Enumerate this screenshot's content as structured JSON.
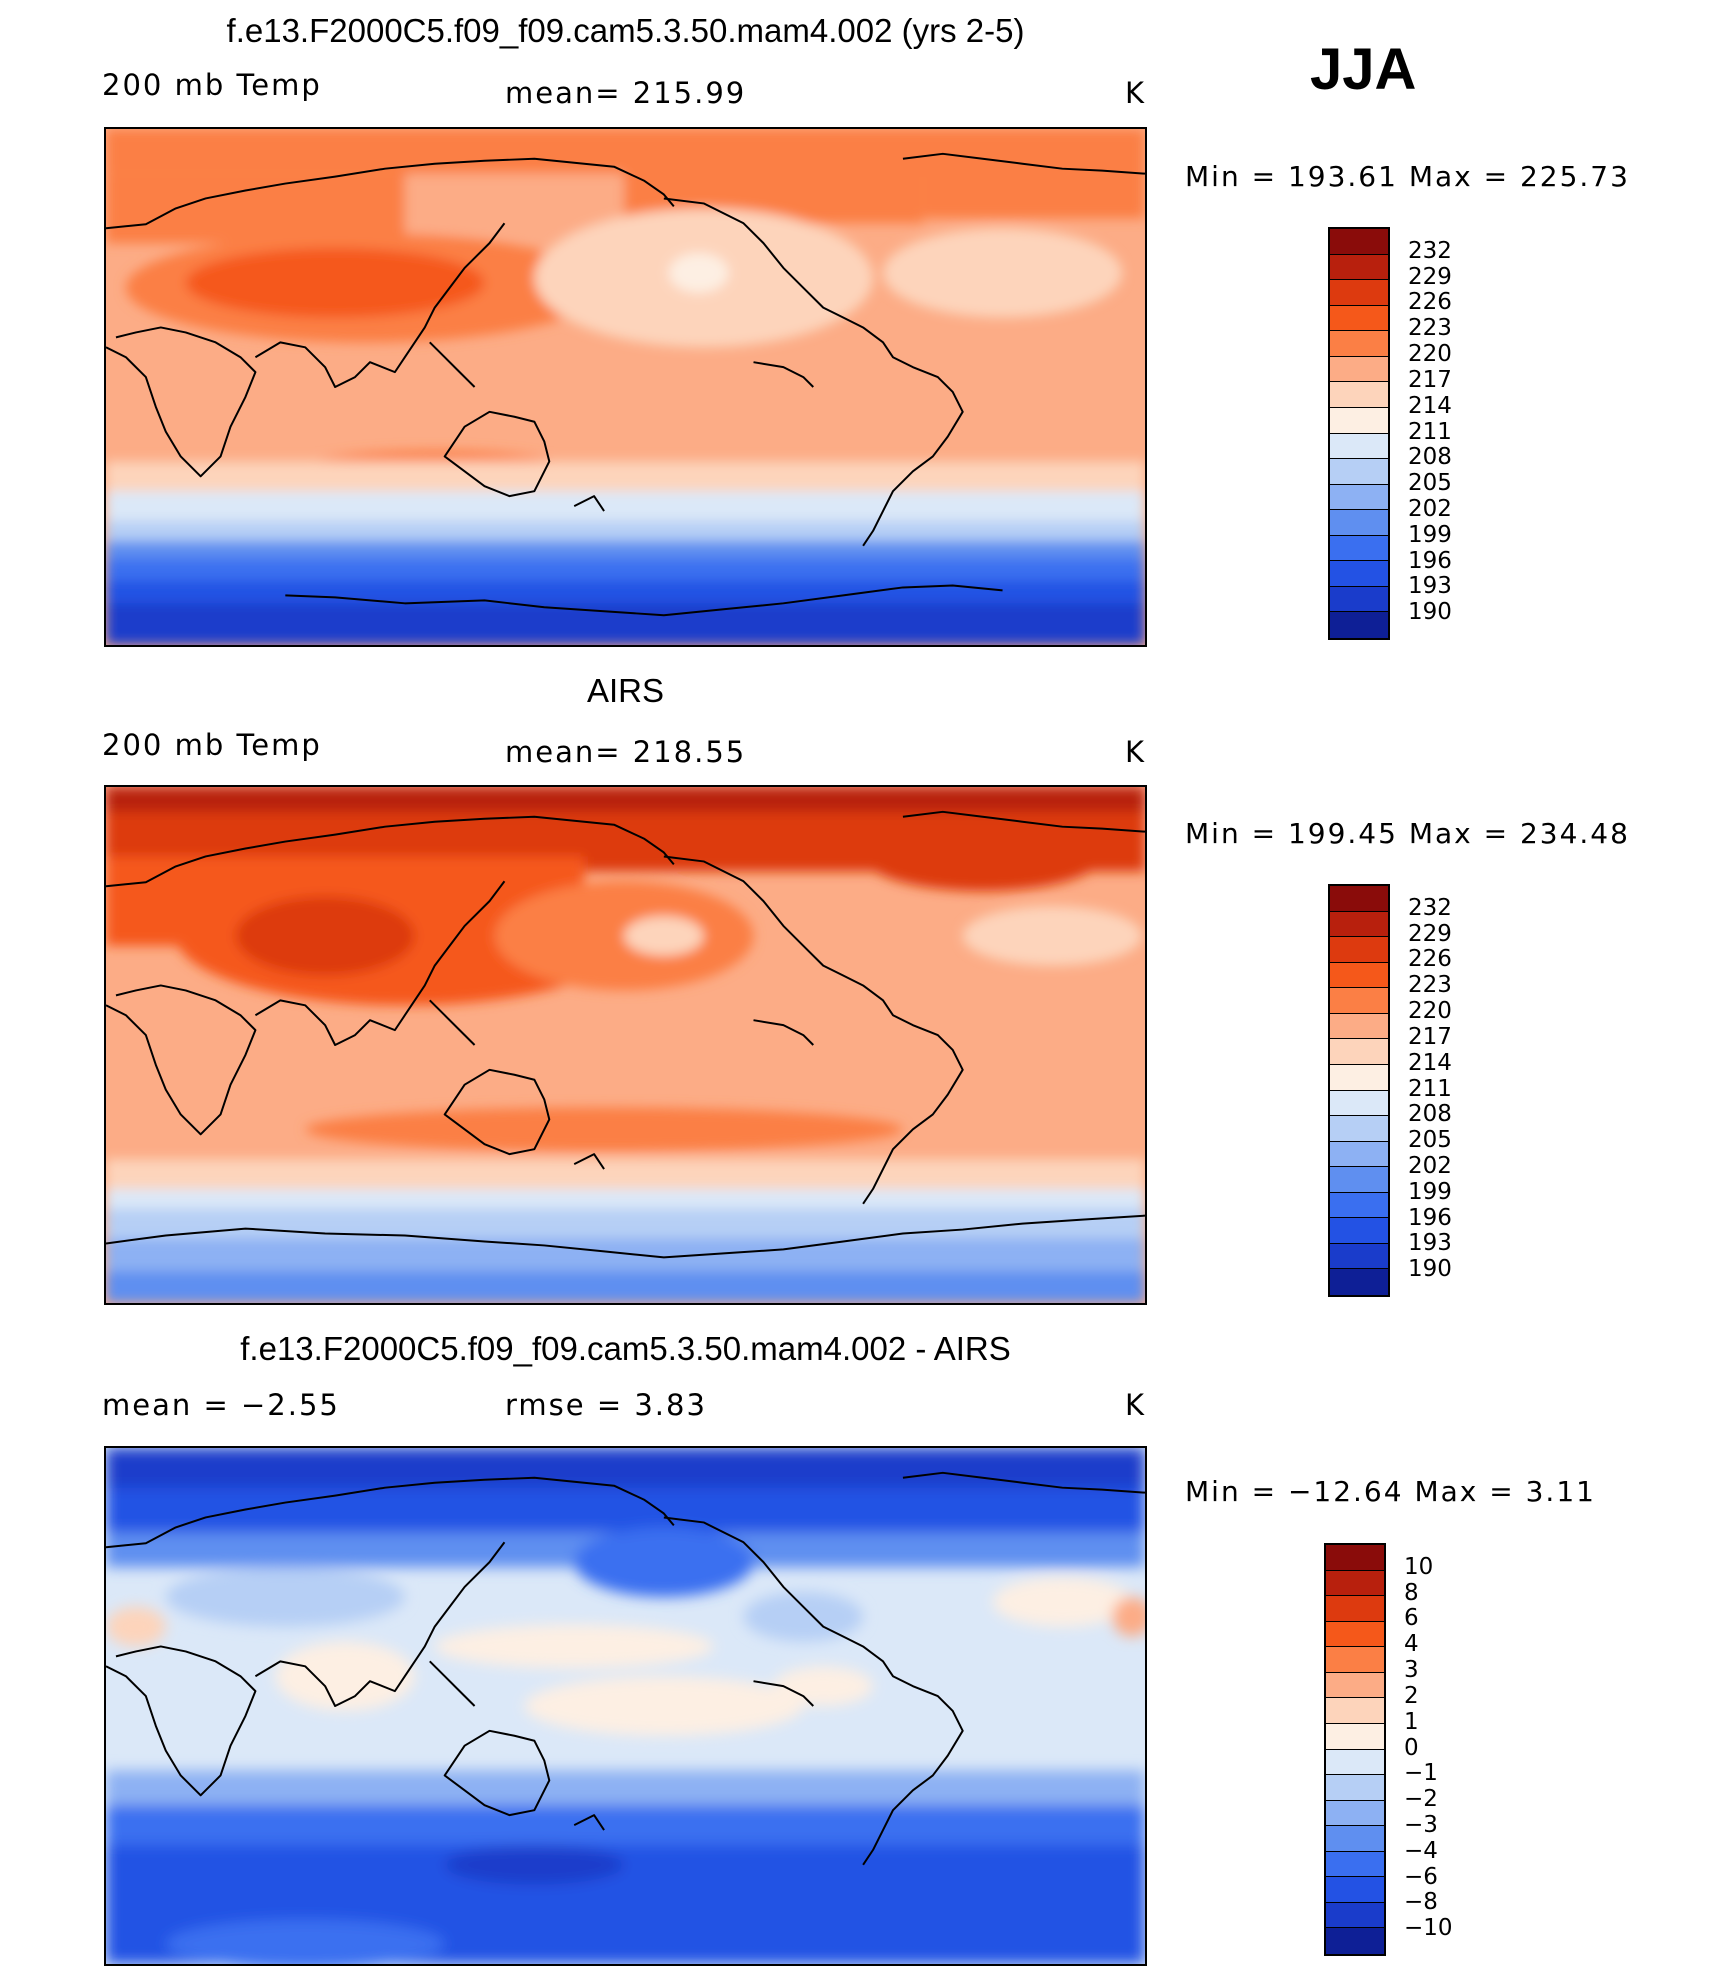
{
  "season": "JJA",
  "units": "K",
  "panels": [
    {
      "title": "f.e13.F2000C5.f09_f09.cam5.3.50.mam4.002 (yrs 2-5)",
      "left_label": "200 mb Temp",
      "center_label": "mean= 215.99",
      "right_label": "K",
      "minmax": "Min  =  193.61  Max  =  225.73"
    },
    {
      "title": "AIRS",
      "left_label": "200 mb Temp",
      "center_label": "mean= 218.55",
      "right_label": "K",
      "minmax": "Min  =  199.45  Max  =  234.48"
    },
    {
      "title": "f.e13.F2000C5.f09_f09.cam5.3.50.mam4.002 - AIRS",
      "left_label": "mean  =    −2.55",
      "center_label": "rmse  =     3.83",
      "right_label": "K",
      "minmax": "Min  =  −12.64  Max  =      3.11"
    }
  ],
  "colorbars": [
    {
      "colors": [
        "#8a0c0a",
        "#b8200d",
        "#dd3a0f",
        "#f5581a",
        "#fb7f45",
        "#fcac86",
        "#fdd4bb",
        "#fdefe3",
        "#dbe8f8",
        "#b6cff5",
        "#8db1f3",
        "#5f8ff0",
        "#3a6ff0",
        "#2352e4",
        "#1a3ccb",
        "#0e1f96"
      ],
      "labels": [
        "232",
        "229",
        "226",
        "223",
        "220",
        "217",
        "214",
        "211",
        "208",
        "205",
        "202",
        "199",
        "196",
        "193",
        "190"
      ]
    },
    {
      "colors": [
        "#8a0c0a",
        "#b8200d",
        "#dd3a0f",
        "#f5581a",
        "#fb7f45",
        "#fcac86",
        "#fdd4bb",
        "#fdefe3",
        "#dbe8f8",
        "#b6cff5",
        "#8db1f3",
        "#5f8ff0",
        "#3a6ff0",
        "#2352e4",
        "#1a3ccb",
        "#0e1f96"
      ],
      "labels": [
        "232",
        "229",
        "226",
        "223",
        "220",
        "217",
        "214",
        "211",
        "208",
        "205",
        "202",
        "199",
        "196",
        "193",
        "190"
      ]
    },
    {
      "colors": [
        "#8a0c0a",
        "#b8200d",
        "#dd3a0f",
        "#f5581a",
        "#fb7f45",
        "#fcac86",
        "#fdd4bb",
        "#fdefe3",
        "#dbe8f8",
        "#b6cff5",
        "#8db1f3",
        "#5f8ff0",
        "#3a6ff0",
        "#2352e4",
        "#1a3ccb",
        "#0e1f96"
      ],
      "labels": [
        "10",
        "8",
        "6",
        "4",
        "3",
        "2",
        "1",
        "0",
        "−1",
        "−2",
        "−3",
        "−4",
        "−6",
        "−8",
        "−10"
      ]
    }
  ],
  "chart_data": [
    {
      "type": "heatmap",
      "title": "f.e13.F2000C5.f09_f09.cam5.3.50.mam4.002 (yrs 2-5)",
      "variable": "200 mb Temp",
      "mean": 215.99,
      "min": 193.61,
      "max": 225.73,
      "units": "K",
      "levels": [
        190,
        193,
        196,
        199,
        202,
        205,
        208,
        211,
        214,
        217,
        220,
        223,
        226,
        229,
        232
      ]
    },
    {
      "type": "heatmap",
      "title": "AIRS",
      "variable": "200 mb Temp",
      "mean": 218.55,
      "min": 199.45,
      "max": 234.48,
      "units": "K",
      "levels": [
        190,
        193,
        196,
        199,
        202,
        205,
        208,
        211,
        214,
        217,
        220,
        223,
        226,
        229,
        232
      ]
    },
    {
      "type": "heatmap",
      "title": "f.e13.F2000C5.f09_f09.cam5.3.50.mam4.002 - AIRS",
      "mean": -2.55,
      "rmse": 3.83,
      "min": -12.64,
      "max": 3.11,
      "units": "K",
      "levels": [
        -10,
        -8,
        -6,
        -4,
        -3,
        -2,
        -1,
        0,
        1,
        2,
        3,
        4,
        6,
        8,
        10
      ]
    }
  ]
}
